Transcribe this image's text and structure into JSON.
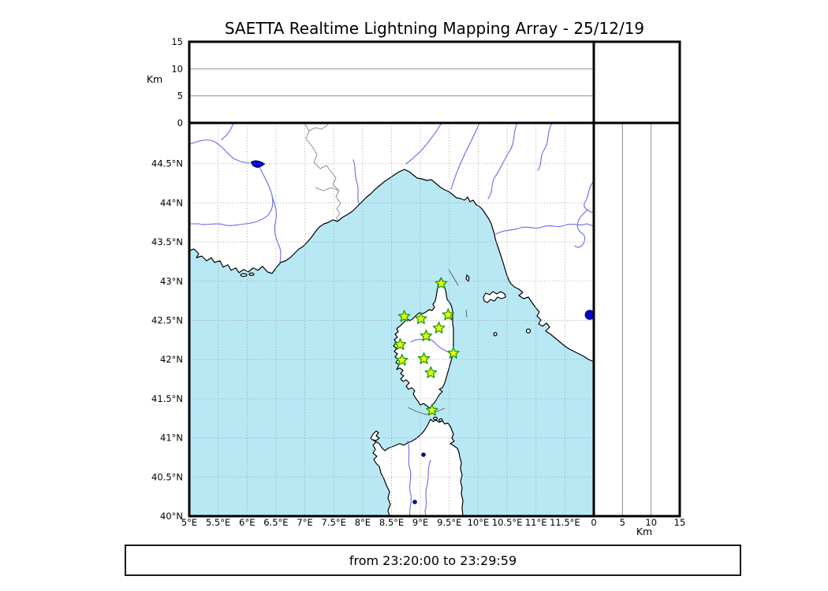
{
  "title": "SAETTA Realtime Lightning Mapping Array - 25/12/19",
  "footer": {
    "time_range": "from 23:20:00 to 23:29:59"
  },
  "top_panel": {
    "axis_label": "Km",
    "ticks": [
      {
        "v": 0,
        "label": "0"
      },
      {
        "v": 5,
        "label": "5"
      },
      {
        "v": 10,
        "label": "10"
      },
      {
        "v": 15,
        "label": "15"
      }
    ],
    "range_km": [
      0,
      15
    ],
    "gridlines_km": [
      5,
      10
    ]
  },
  "right_panel": {
    "axis_label": "Km",
    "ticks": [
      {
        "v": 0,
        "label": "0"
      },
      {
        "v": 5,
        "label": "5"
      },
      {
        "v": 10,
        "label": "10"
      },
      {
        "v": 15,
        "label": "15"
      }
    ],
    "range_km": [
      0,
      15
    ],
    "gridlines_km": [
      5,
      10
    ]
  },
  "map_panel": {
    "lon_range": [
      5,
      12
    ],
    "lat_range": [
      40,
      45.02
    ],
    "lon_ticks": [
      {
        "v": 5,
        "label": "5°E"
      },
      {
        "v": 5.5,
        "label": "5.5°E"
      },
      {
        "v": 6,
        "label": "6°E"
      },
      {
        "v": 6.5,
        "label": "6.5°E"
      },
      {
        "v": 7,
        "label": "7°E"
      },
      {
        "v": 7.5,
        "label": "7.5°E"
      },
      {
        "v": 8,
        "label": "8°E"
      },
      {
        "v": 8.5,
        "label": "8.5°E"
      },
      {
        "v": 9,
        "label": "9°E"
      },
      {
        "v": 9.5,
        "label": "9.5°E"
      },
      {
        "v": 10,
        "label": "10°E"
      },
      {
        "v": 10.5,
        "label": "10.5°E"
      },
      {
        "v": 11,
        "label": "11°E"
      },
      {
        "v": 11.5,
        "label": "11.5°E"
      }
    ],
    "lat_ticks": [
      {
        "v": 40,
        "label": "40°N"
      },
      {
        "v": 40.5,
        "label": "40.5°N"
      },
      {
        "v": 41,
        "label": "41°N"
      },
      {
        "v": 41.5,
        "label": "41.5°N"
      },
      {
        "v": 42,
        "label": "42°N"
      },
      {
        "v": 42.5,
        "label": "42.5°N"
      },
      {
        "v": 43,
        "label": "43°N"
      },
      {
        "v": 43.5,
        "label": "43.5°N"
      },
      {
        "v": 44,
        "label": "44°N"
      },
      {
        "v": 44.5,
        "label": "44.5°N"
      }
    ],
    "lon_gridlines": [
      5.5,
      6,
      6.5,
      7,
      7.5,
      8,
      8.5,
      9,
      9.5,
      10,
      10.5,
      11,
      11.5
    ],
    "lat_gridlines": [
      40.5,
      41,
      41.5,
      42,
      42.5,
      43,
      43.5,
      44,
      44.5
    ]
  },
  "chart_data": {
    "type": "scatter",
    "title": "SAETTA Realtime Lightning Mapping Array - 25/12/19",
    "time_window": "from 23:20:00 to 23:29:59",
    "layout_hint": "map panel (lon 5-12E, lat 40-45N) with altitude-vs-longitude panel on top (0-15 Km) and altitude-vs-latitude panel on right (0-15 Km); 0.5 deg dotted grid",
    "lightning_sources": {
      "count": 0,
      "points": []
    },
    "stations": {
      "marker": "star",
      "fill": "#ffff00",
      "edge": "#19a319",
      "points": [
        {
          "lon": 9.36,
          "lat": 42.97
        },
        {
          "lon": 8.72,
          "lat": 42.55
        },
        {
          "lon": 9.01,
          "lat": 42.52
        },
        {
          "lon": 9.48,
          "lat": 42.57
        },
        {
          "lon": 9.32,
          "lat": 42.4
        },
        {
          "lon": 9.1,
          "lat": 42.3
        },
        {
          "lon": 8.65,
          "lat": 42.19
        },
        {
          "lon": 9.57,
          "lat": 42.08
        },
        {
          "lon": 9.06,
          "lat": 42.01
        },
        {
          "lon": 8.68,
          "lat": 41.99
        },
        {
          "lon": 9.18,
          "lat": 41.83
        },
        {
          "lon": 9.2,
          "lat": 41.35
        }
      ]
    },
    "lake_marker": {
      "lon": 11.93,
      "lat": 42.57,
      "color": "#0000cc"
    }
  },
  "colors": {
    "sea": "#b9e8f5",
    "land": "#ffffff",
    "coastline": "#000000",
    "grid": "#999999",
    "river": "#6969e8",
    "country_border": "#8f8f8f",
    "star_fill": "#ffff00",
    "star_edge": "#19a319",
    "lake": "#0000cc",
    "frame": "#000000"
  }
}
